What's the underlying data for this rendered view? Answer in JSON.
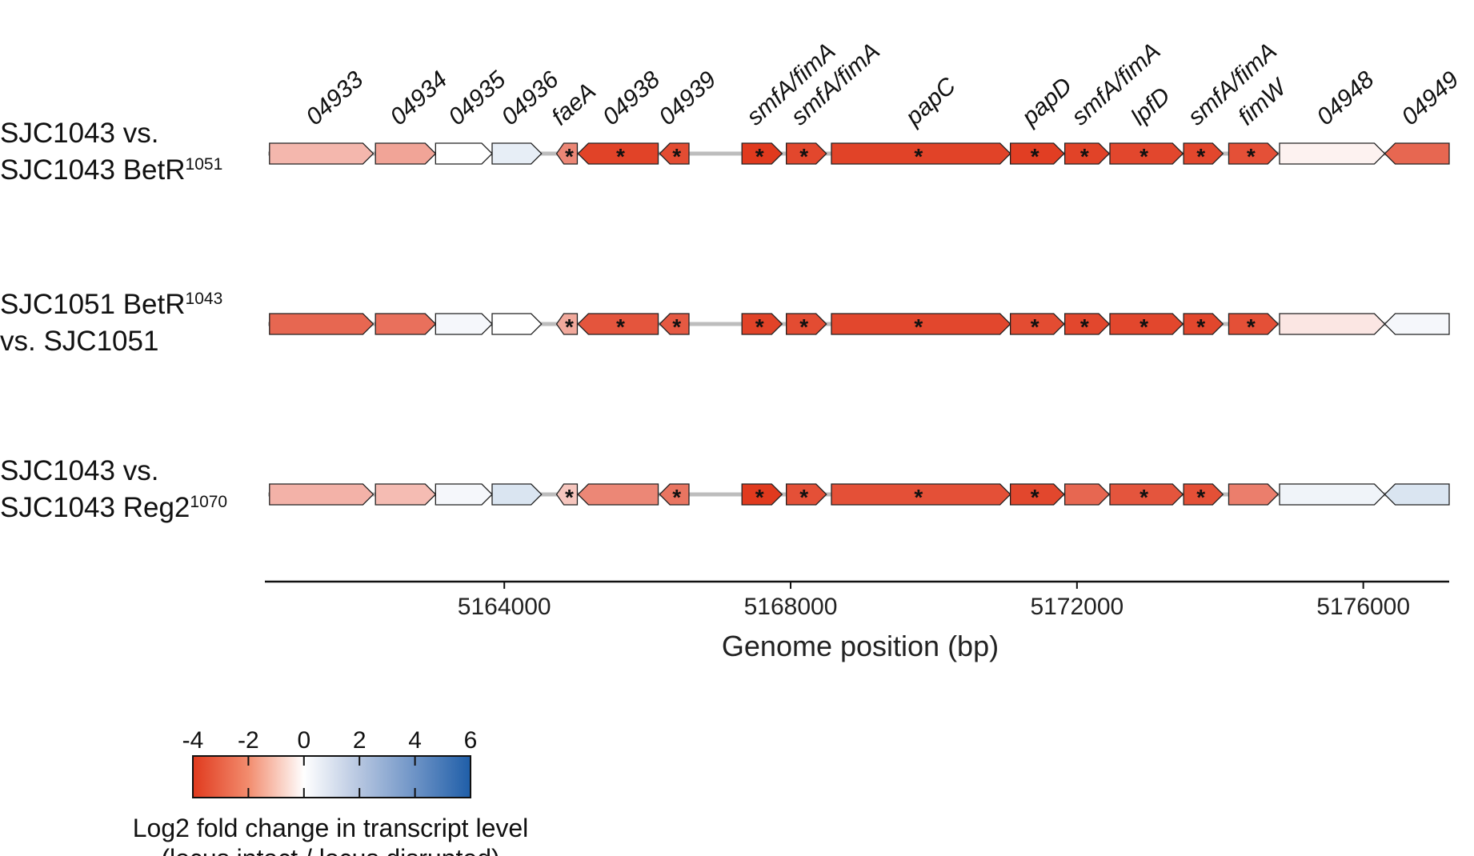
{
  "chart_data": {
    "type": "gene-map-heatmap",
    "xlabel": "Genome position (bp)",
    "xlim": [
      5160700,
      5177200
    ],
    "xticks": [
      5164000,
      5168000,
      5172000,
      5176000
    ],
    "xtick_labels": [
      "5164000",
      "5168000",
      "5172000",
      "5176000"
    ],
    "genes": [
      {
        "label": "04933",
        "start": 5160720,
        "end": 5162170,
        "strand": "+"
      },
      {
        "label": "04934",
        "start": 5162200,
        "end": 5163040,
        "strand": "+"
      },
      {
        "label": "04935",
        "start": 5163040,
        "end": 5163830,
        "strand": "+"
      },
      {
        "label": "04936",
        "start": 5163830,
        "end": 5164520,
        "strand": "+"
      },
      {
        "label": "faeA",
        "start": 5164730,
        "end": 5165020,
        "strand": "-"
      },
      {
        "label": "04938",
        "start": 5165030,
        "end": 5166150,
        "strand": "-"
      },
      {
        "label": "04939",
        "start": 5166170,
        "end": 5166580,
        "strand": "-"
      },
      {
        "label": "smfA/fimA",
        "start": 5167320,
        "end": 5167880,
        "strand": "+"
      },
      {
        "label": "smfA/fimA",
        "start": 5167940,
        "end": 5168500,
        "strand": "+"
      },
      {
        "label": "papC",
        "start": 5168570,
        "end": 5171070,
        "strand": "+"
      },
      {
        "label": "papD",
        "start": 5171070,
        "end": 5171820,
        "strand": "+"
      },
      {
        "label": "smfA/fimA",
        "start": 5171830,
        "end": 5172450,
        "strand": "+"
      },
      {
        "label": "lpfD",
        "start": 5172460,
        "end": 5173480,
        "strand": "+"
      },
      {
        "label": "smfA/fimA",
        "start": 5173490,
        "end": 5174040,
        "strand": "+"
      },
      {
        "label": "fimW",
        "start": 5174120,
        "end": 5174810,
        "strand": "+"
      },
      {
        "label": "04948",
        "start": 5174830,
        "end": 5176300,
        "strand": "+"
      },
      {
        "label": "04949",
        "start": 5176300,
        "end": 5177200,
        "strand": "-"
      }
    ],
    "series": [
      {
        "label_main": "SJC1043 vs.\nSJC1043 BetR",
        "label_sup": "1051",
        "values": [
          -1.3,
          -1.7,
          0.0,
          0.5,
          -2.3,
          -3.8,
          -3.6,
          -4.0,
          -3.7,
          -3.8,
          -3.9,
          -3.8,
          -3.7,
          -3.7,
          -3.5,
          -0.2,
          -3.0
        ],
        "significant": [
          false,
          false,
          false,
          false,
          true,
          true,
          true,
          true,
          true,
          true,
          true,
          true,
          true,
          true,
          true,
          false,
          false
        ]
      },
      {
        "label_main": "SJC1051 BetR",
        "label_sup": "1043",
        "label_tail": "vs. SJC1051",
        "values": [
          -3.0,
          -2.8,
          0.2,
          0.0,
          -1.6,
          -3.4,
          -3.3,
          -3.8,
          -3.6,
          -3.7,
          -3.6,
          -3.7,
          -3.7,
          -3.7,
          -3.5,
          -0.4,
          0.2
        ],
        "significant": [
          false,
          false,
          false,
          false,
          true,
          true,
          true,
          true,
          true,
          true,
          true,
          true,
          true,
          true,
          true,
          false,
          false
        ]
      },
      {
        "label_main": "SJC1043 vs.\nSJC1043 Reg2",
        "label_sup": "1070",
        "values": [
          -1.4,
          -1.2,
          0.2,
          0.8,
          -1.0,
          -2.3,
          -2.7,
          -4.0,
          -3.5,
          -3.5,
          -3.7,
          -3.0,
          -3.4,
          -3.5,
          -2.5,
          0.3,
          0.8
        ],
        "significant": [
          false,
          false,
          false,
          false,
          true,
          false,
          true,
          true,
          true,
          true,
          true,
          false,
          true,
          true,
          false,
          false,
          false
        ]
      }
    ],
    "colorbar": {
      "vmin": -4,
      "vmax": 6,
      "ticks": [
        -4,
        -2,
        0,
        2,
        4,
        6
      ],
      "tick_labels": [
        "-4",
        "-2",
        "0",
        "2",
        "4",
        "6"
      ],
      "colors": {
        "low": "#e03a1e",
        "mid": "#ffffff",
        "high": "#1f5ea8"
      },
      "label_line1": "Log2 fold change in transcript level",
      "label_line2": "(locus intact / locus disrupted)"
    },
    "significance_marker": "*"
  }
}
